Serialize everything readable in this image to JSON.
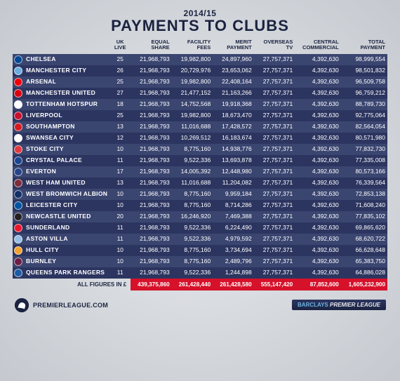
{
  "header": {
    "season": "2014/15",
    "title": "PAYMENTS TO CLUBS"
  },
  "columns": {
    "uk_live": "UK\nLIVE",
    "equal_share": "EQUAL\nSHARE",
    "facility_fees": "FACILITY\nFEES",
    "merit_payment": "MERIT\nPAYMENT",
    "overseas_tv": "OVERSEAS\nTV",
    "central_commercial": "CENTRAL\nCOMMERCIAL",
    "total_payment": "TOTAL\nPAYMENT"
  },
  "style": {
    "row_colors": [
      "#3a4570",
      "#2c3560"
    ],
    "total_row_bg": "#d6112a",
    "text_color": "#ffffff",
    "header_text_color": "#1a2340"
  },
  "clubs": [
    {
      "name": "CHELSEA",
      "crest": "#034694",
      "uk_live": 25,
      "equal_share": "21,968,793",
      "facility_fees": "19,982,800",
      "merit_payment": "24,897,960",
      "overseas_tv": "27,757,371",
      "central_commercial": "4,392,630",
      "total_payment": "98,999,554"
    },
    {
      "name": "MANCHESTER CITY",
      "crest": "#6caddf",
      "uk_live": 26,
      "equal_share": "21,968,793",
      "facility_fees": "20,729,976",
      "merit_payment": "23,653,062",
      "overseas_tv": "27,757,371",
      "central_commercial": "4,392,630",
      "total_payment": "98,501,832"
    },
    {
      "name": "ARSENAL",
      "crest": "#ef0107",
      "uk_live": 25,
      "equal_share": "21,968,793",
      "facility_fees": "19,982,800",
      "merit_payment": "22,408,164",
      "overseas_tv": "27,757,371",
      "central_commercial": "4,392,630",
      "total_payment": "96,509,758"
    },
    {
      "name": "MANCHESTER UNITED",
      "crest": "#da020e",
      "uk_live": 27,
      "equal_share": "21,968,793",
      "facility_fees": "21,477,152",
      "merit_payment": "21,163,266",
      "overseas_tv": "27,757,371",
      "central_commercial": "4,392,630",
      "total_payment": "96,759,212"
    },
    {
      "name": "TOTTENHAM HOTSPUR",
      "crest": "#ffffff",
      "uk_live": 18,
      "equal_share": "21,968,793",
      "facility_fees": "14,752,568",
      "merit_payment": "19,918,368",
      "overseas_tv": "27,757,371",
      "central_commercial": "4,392,630",
      "total_payment": "88,789,730"
    },
    {
      "name": "LIVERPOOL",
      "crest": "#c8102e",
      "uk_live": 25,
      "equal_share": "21,968,793",
      "facility_fees": "19,982,800",
      "merit_payment": "18,673,470",
      "overseas_tv": "27,757,371",
      "central_commercial": "4,392,630",
      "total_payment": "92,775,064"
    },
    {
      "name": "SOUTHAMPTON",
      "crest": "#d71920",
      "uk_live": 13,
      "equal_share": "21,968,793",
      "facility_fees": "11,016,688",
      "merit_payment": "17,428,572",
      "overseas_tv": "27,757,371",
      "central_commercial": "4,392,630",
      "total_payment": "82,564,054"
    },
    {
      "name": "SWANSEA CITY",
      "crest": "#ffffff",
      "uk_live": 12,
      "equal_share": "21,968,793",
      "facility_fees": "10,269,512",
      "merit_payment": "16,183,674",
      "overseas_tv": "27,757,371",
      "central_commercial": "4,392,630",
      "total_payment": "80,571,980"
    },
    {
      "name": "STOKE CITY",
      "crest": "#e03a3e",
      "uk_live": 10,
      "equal_share": "21,968,793",
      "facility_fees": "8,775,160",
      "merit_payment": "14,938,776",
      "overseas_tv": "27,757,371",
      "central_commercial": "4,392,630",
      "total_payment": "77,832,730"
    },
    {
      "name": "CRYSTAL PALACE",
      "crest": "#1b458f",
      "uk_live": 11,
      "equal_share": "21,968,793",
      "facility_fees": "9,522,336",
      "merit_payment": "13,693,878",
      "overseas_tv": "27,757,371",
      "central_commercial": "4,392,630",
      "total_payment": "77,335,008"
    },
    {
      "name": "EVERTON",
      "crest": "#274488",
      "uk_live": 17,
      "equal_share": "21,968,793",
      "facility_fees": "14,005,392",
      "merit_payment": "12,448,980",
      "overseas_tv": "27,757,371",
      "central_commercial": "4,392,630",
      "total_payment": "80,573,166"
    },
    {
      "name": "WEST HAM UNITED",
      "crest": "#7c2c3b",
      "uk_live": 13,
      "equal_share": "21,968,793",
      "facility_fees": "11,016,688",
      "merit_payment": "11,204,082",
      "overseas_tv": "27,757,371",
      "central_commercial": "4,392,630",
      "total_payment": "76,339,564"
    },
    {
      "name": "WEST BROMWICH ALBION",
      "crest": "#122f67",
      "uk_live": 10,
      "equal_share": "21,968,793",
      "facility_fees": "8,775,160",
      "merit_payment": "9,959,184",
      "overseas_tv": "27,757,371",
      "central_commercial": "4,392,630",
      "total_payment": "72,853,138"
    },
    {
      "name": "LEICESTER CITY",
      "crest": "#0053a0",
      "uk_live": 10,
      "equal_share": "21,968,793",
      "facility_fees": "8,775,160",
      "merit_payment": "8,714,286",
      "overseas_tv": "27,757,371",
      "central_commercial": "4,392,630",
      "total_payment": "71,608,240"
    },
    {
      "name": "NEWCASTLE UNITED",
      "crest": "#241f20",
      "uk_live": 20,
      "equal_share": "21,968,793",
      "facility_fees": "16,246,920",
      "merit_payment": "7,469,388",
      "overseas_tv": "27,757,371",
      "central_commercial": "4,392,630",
      "total_payment": "77,835,102"
    },
    {
      "name": "SUNDERLAND",
      "crest": "#eb172b",
      "uk_live": 11,
      "equal_share": "21,968,793",
      "facility_fees": "9,522,336",
      "merit_payment": "6,224,490",
      "overseas_tv": "27,757,371",
      "central_commercial": "4,392,630",
      "total_payment": "69,865,620"
    },
    {
      "name": "ASTON VILLA",
      "crest": "#95bfe5",
      "uk_live": 11,
      "equal_share": "21,968,793",
      "facility_fees": "9,522,336",
      "merit_payment": "4,979,592",
      "overseas_tv": "27,757,371",
      "central_commercial": "4,392,630",
      "total_payment": "68,620,722"
    },
    {
      "name": "HULL CITY",
      "crest": "#f5a12d",
      "uk_live": 10,
      "equal_share": "21,968,793",
      "facility_fees": "8,775,160",
      "merit_payment": "3,734,694",
      "overseas_tv": "27,757,371",
      "central_commercial": "4,392,630",
      "total_payment": "66,628,648"
    },
    {
      "name": "BURNLEY",
      "crest": "#6c1d45",
      "uk_live": 10,
      "equal_share": "21,968,793",
      "facility_fees": "8,775,160",
      "merit_payment": "2,489,796",
      "overseas_tv": "27,757,371",
      "central_commercial": "4,392,630",
      "total_payment": "65,383,750"
    },
    {
      "name": "QUEENS PARK RANGERS",
      "crest": "#1d5ba4",
      "uk_live": 11,
      "equal_share": "21,968,793",
      "facility_fees": "9,522,336",
      "merit_payment": "1,244,898",
      "overseas_tv": "27,757,371",
      "central_commercial": "4,392,630",
      "total_payment": "64,886,028"
    }
  ],
  "totals": {
    "label": "ALL FIGURES IN £",
    "equal_share": "439,375,860",
    "facility_fees": "261,428,440",
    "merit_payment": "261,428,580",
    "overseas_tv": "555,147,420",
    "central_commercial": "87,852,600",
    "total_payment": "1,605,232,900"
  },
  "footer": {
    "url": "PREMIERLEAGUE.COM",
    "sponsor_prefix": "BARCLAYS",
    "sponsor_suffix": "PREMIER LEAGUE"
  }
}
